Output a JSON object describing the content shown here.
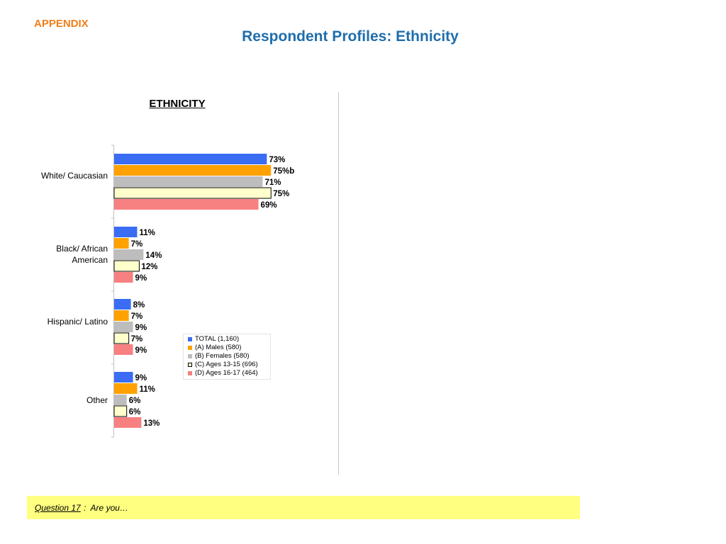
{
  "header": {
    "section": "APPENDIX",
    "title": "Respondent Profiles: Ethnicity"
  },
  "chart_data": {
    "type": "bar",
    "orientation": "horizontal",
    "title": "ETHNICITY",
    "categories": [
      "White/ Caucasian",
      "Black/ African American",
      "Hispanic/ Latino",
      "Other"
    ],
    "series": [
      {
        "name": "TOTAL (1,160)",
        "color": "#3a6cf4",
        "values": [
          73,
          11,
          8,
          9
        ],
        "labels": [
          "73%",
          "11%",
          "8%",
          "9%"
        ]
      },
      {
        "name": "(A) Males (580)",
        "color": "#ffa100",
        "values": [
          75,
          7,
          7,
          11
        ],
        "labels": [
          "75%b",
          "7%",
          "7%",
          "11%"
        ]
      },
      {
        "name": "(B) Females (580)",
        "color": "#bdbdbd",
        "values": [
          71,
          14,
          9,
          6
        ],
        "labels": [
          "71%",
          "14%",
          "9%",
          "6%"
        ]
      },
      {
        "name": "(C) Ages 13-15 (696)",
        "color": "#ffffcc",
        "outline": "#000000",
        "values": [
          75,
          12,
          7,
          6
        ],
        "labels": [
          "75%",
          "12%",
          "7%",
          "6%"
        ]
      },
      {
        "name": "(D) Ages 16-17 (464)",
        "color": "#f78080",
        "values": [
          69,
          9,
          9,
          13
        ],
        "labels": [
          "69%",
          "9%",
          "9%",
          "13%"
        ]
      }
    ],
    "xlim": [
      0,
      100
    ],
    "legend_position": "right",
    "grid": false
  },
  "footer": {
    "question_label": "Question 17",
    "question_text": ":  Are you…"
  }
}
